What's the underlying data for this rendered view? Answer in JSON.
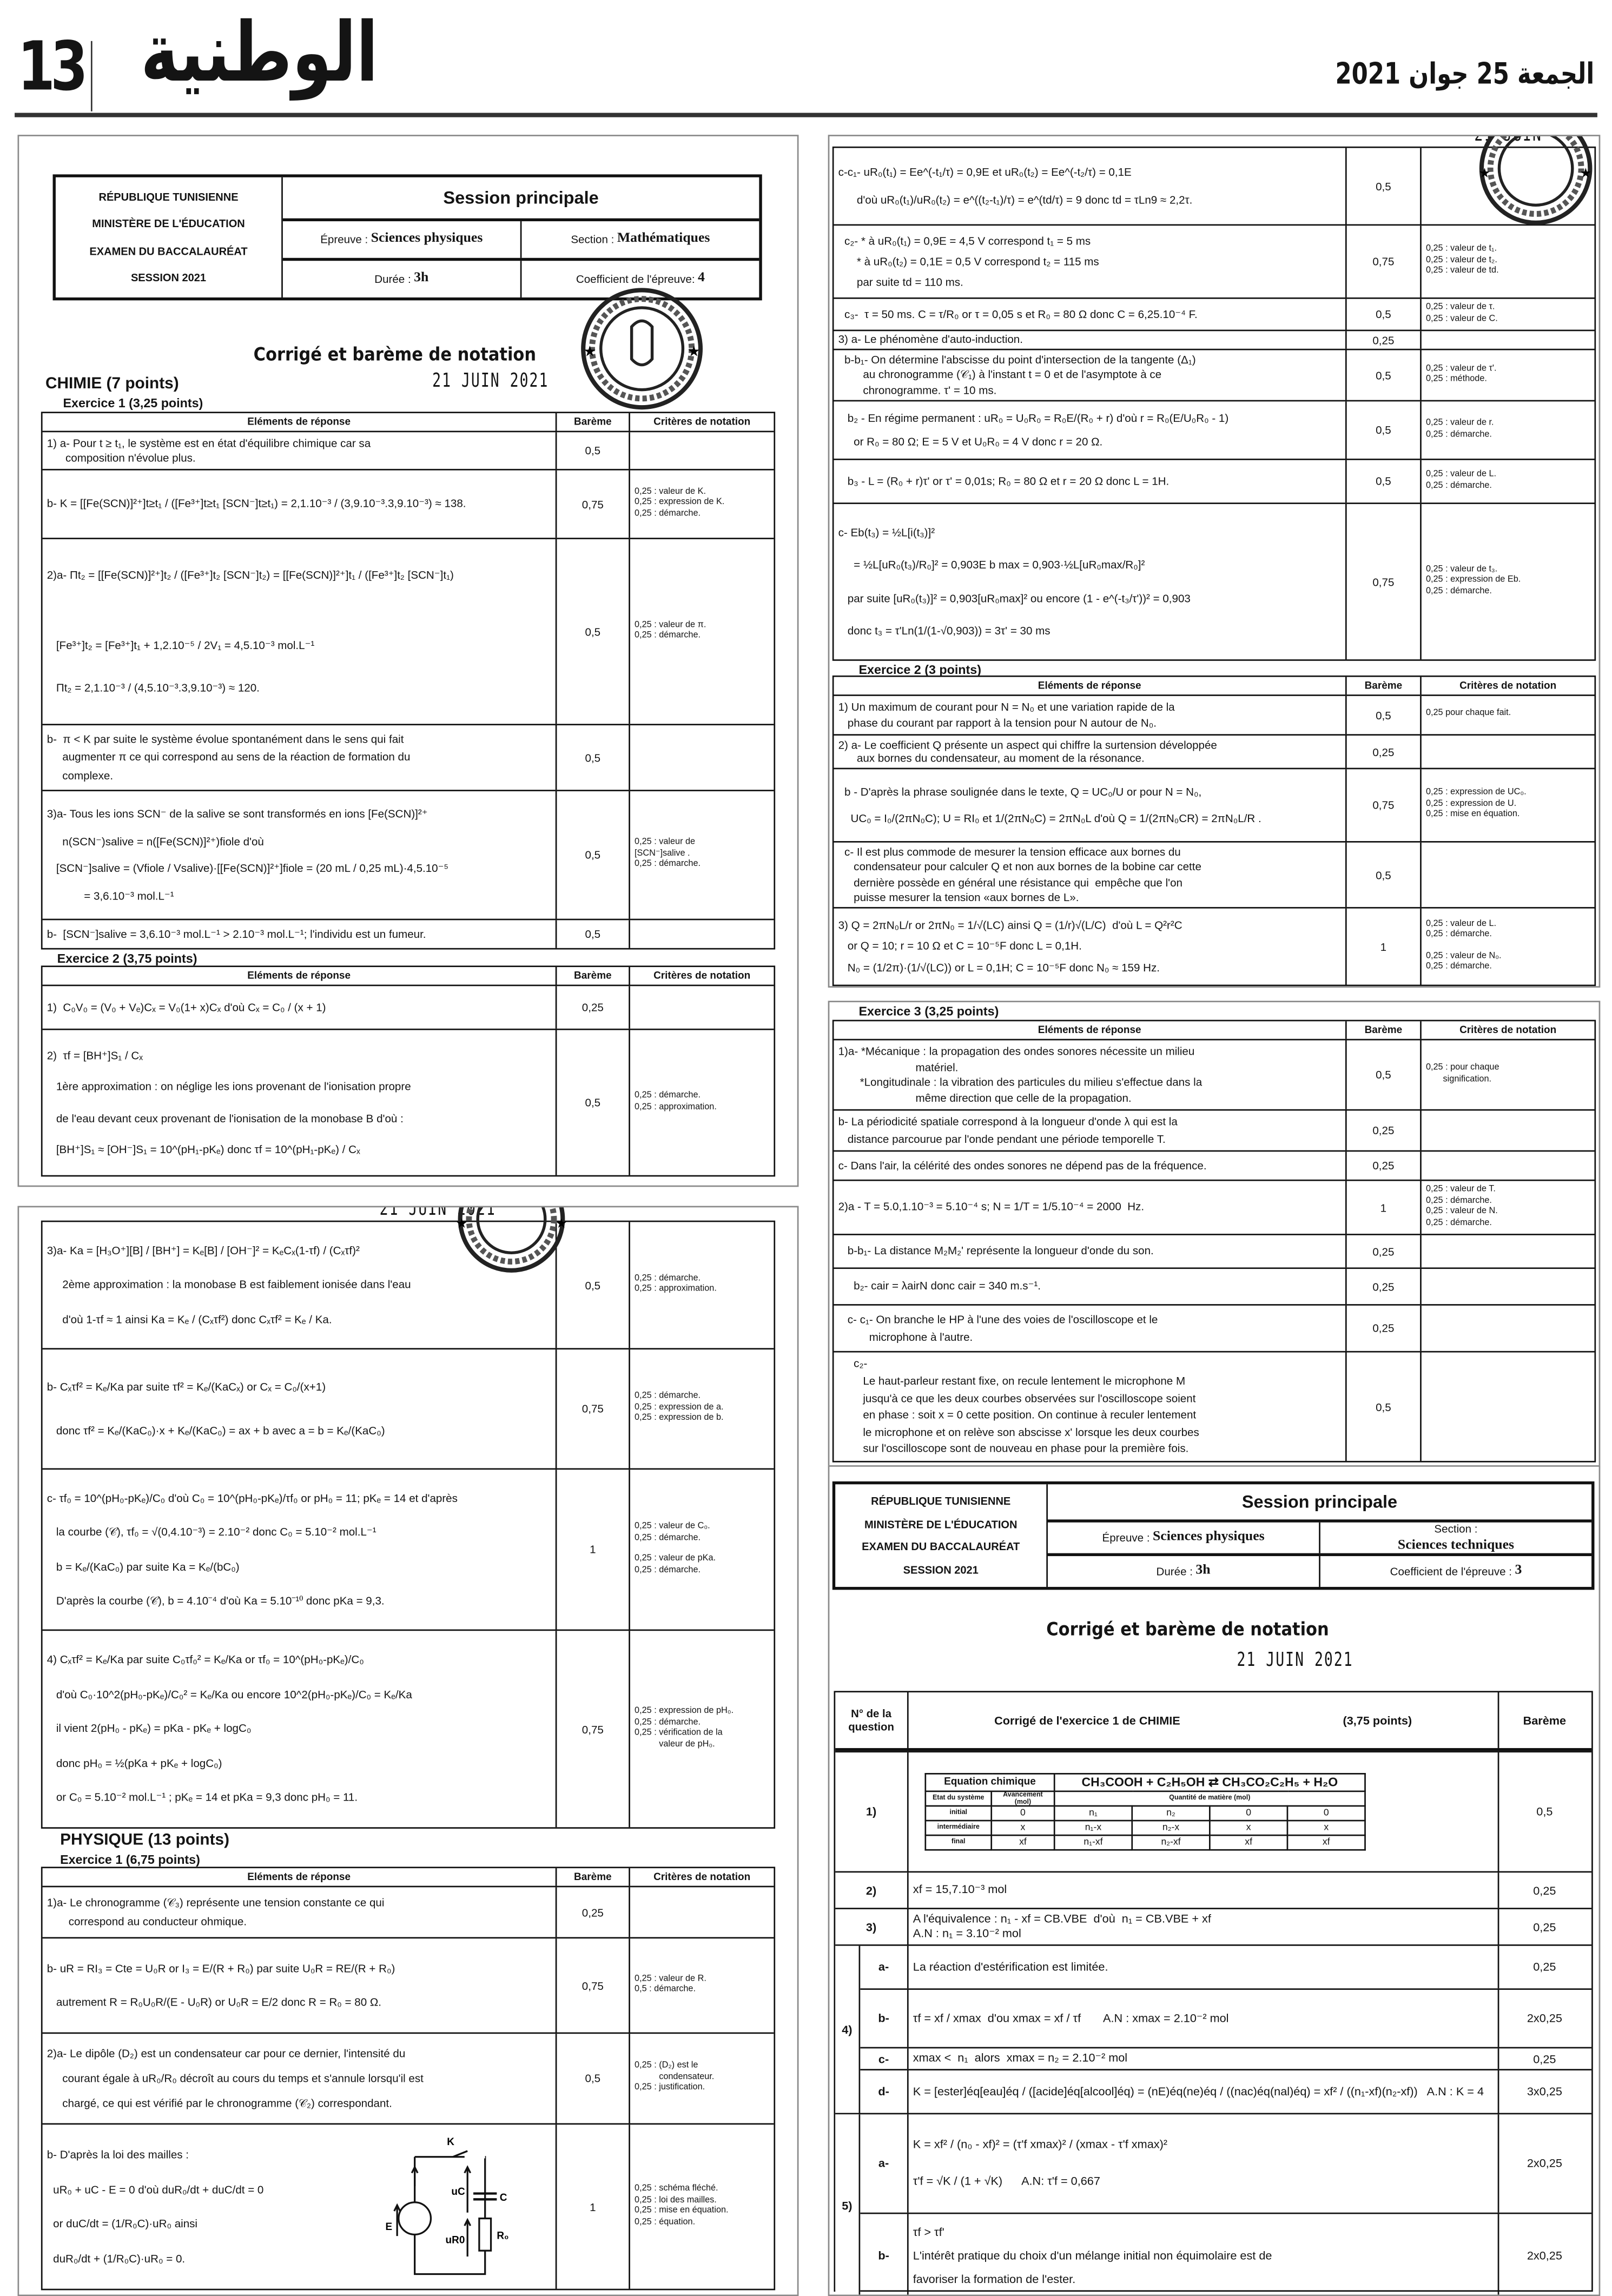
{
  "header": {
    "page_number": "13",
    "logo": "الوطنية",
    "date": "الجمعة 25 جوان 2021"
  },
  "columns": {
    "elements": "Eléments de réponse",
    "bareme": "Barème",
    "criteres": "Critères de notation"
  },
  "stamp_date": "21 JUIN 2021",
  "exam_math": {
    "left": [
      "RÉPUBLIQUE TUNISIENNE",
      "MINISTÈRE DE L'ÉDUCATION",
      "EXAMEN DU BACCALAURÉAT",
      "SESSION 2021"
    ],
    "session": "Session principale",
    "epreuve_label": "Épreuve :",
    "epreuve": "Sciences physiques",
    "section_label": "Section :",
    "section": "Mathématiques",
    "duree_label": "Durée :",
    "duree": "3h",
    "coef_label": "Coefficient de l'épreuve:",
    "coef": "4"
  },
  "math": {
    "title": "Corrigé et barème de notation",
    "chimie": "CHIMIE (7 points)",
    "ex1_label": "Exercice 1 (3,25 points)",
    "ex1": [
      {
        "lines": [
          "1) a- Pour t ≥ t₁, le système est en état d'équilibre chimique car sa",
          "      composition n'évolue plus."
        ],
        "bareme": "0,5",
        "criteres": []
      },
      {
        "lines": [
          "b- K = [[Fe(SCN)]²⁺]t≥t₁ / ([Fe³⁺]t≥t₁ [SCN⁻]t≥t₁) = 2,1.10⁻³ / (3,9.10⁻³.3,9.10⁻³) ≈ 138."
        ],
        "bareme": "0,75",
        "criteres": [
          "0,25 : valeur de K.",
          "0,25 : expression de K.",
          "0,25 : démarche."
        ]
      },
      {
        "lines": [
          "2)a- Πt₂ = [[Fe(SCN)]²⁺]t₂ / ([Fe³⁺]t₂ [SCN⁻]t₂) = [[Fe(SCN)]²⁺]t₁ / ([Fe³⁺]t₂ [SCN⁻]t₁)",
          "",
          "   [Fe³⁺]t₂ = [Fe³⁺]t₁ + 1,2.10⁻⁵ / 2V₁ = 4,5.10⁻³ mol.L⁻¹",
          "   Πt₂ = 2,1.10⁻³ / (4,5.10⁻³.3,9.10⁻³) ≈ 120."
        ],
        "bareme": "0,5",
        "criteres": [
          "0,25 : valeur de π.",
          "0,25 : démarche."
        ]
      },
      {
        "lines": [
          "b-  π < K par suite le système évolue spontanément dans le sens qui fait",
          "     augmenter π ce qui correspond au sens de la réaction de formation du",
          "     complexe."
        ],
        "bareme": "0,5",
        "criteres": []
      },
      {
        "lines": [
          "3)a- Tous les ions SCN⁻ de la salive se sont transformés en ions [Fe(SCN)]²⁺",
          "     n(SCN⁻)salive = n([Fe(SCN)]²⁺)fiole d'où",
          "   [SCN⁻]salive = (Vfiole / Vsalive)·[[Fe(SCN)]²⁺]fiole = (20 mL / 0,25 mL)·4,5.10⁻⁵",
          "            = 3,6.10⁻³ mol.L⁻¹"
        ],
        "bareme": "0,5",
        "criteres": [
          "0,25 : valeur de",
          "[SCN⁻]salive .",
          "0,25 : démarche."
        ]
      },
      {
        "lines": [
          "b-  [SCN⁻]salive = 3,6.10⁻³ mol.L⁻¹ > 2.10⁻³ mol.L⁻¹; l'individu est un fumeur."
        ],
        "bareme": "0,5",
        "criteres": []
      }
    ],
    "ex2_label": "Exercice 2 (3,75 points)",
    "ex2": [
      {
        "lines": [
          "1)  C₀V₀ = (V₀ + Vₑ)Cₓ = V₀(1+ x)Cₓ d'où Cₓ = C₀ / (x + 1)"
        ],
        "bareme": "0,25",
        "criteres": []
      },
      {
        "lines": [
          "2)  τf = [BH⁺]S₁ / Cₓ",
          "   1ère approximation : on néglige les ions provenant de l'ionisation propre",
          "   de l'eau devant ceux provenant de l'ionisation de la monobase B d'où :",
          "   [BH⁺]S₁ ≈ [OH⁻]S₁ = 10^(pH₁-pKₑ) donc τf = 10^(pH₁-pKₑ) / Cₓ"
        ],
        "bareme": "0,5",
        "criteres": [
          "0,25 : démarche.",
          "0,25 : approximation."
        ]
      }
    ],
    "ex2_cont": [
      {
        "lines": [
          "3)a- Ka = [H₃O⁺][B] / [BH⁺] = Kₑ[B] / [OH⁻]² = KₑCₓ(1-τf) / (Cₓτf)²",
          "     2ème approximation : la monobase B est faiblement ionisée dans l'eau",
          "     d'où 1-τf ≈ 1 ainsi Ka = Kₑ / (Cₓτf²) donc Cₓτf² = Kₑ / Ka."
        ],
        "bareme": "0,5",
        "criteres": [
          "0,25 : démarche.",
          "0,25 : approximation."
        ]
      },
      {
        "lines": [
          "b- Cₓτf² = Kₑ/Ka par suite τf² = Kₑ/(KaCₓ) or Cₓ = C₀/(x+1)",
          "   donc τf² = Kₑ/(KaC₀)·x + Kₑ/(KaC₀) = ax + b avec a = b = Kₑ/(KaC₀)"
        ],
        "bareme": "0,75",
        "criteres": [
          "0,25 : démarche.",
          "0,25 : expression de a.",
          "0,25 : expression de b."
        ]
      },
      {
        "lines": [
          "c- τf₀ = 10^(pH₀-pKₑ)/C₀ d'où C₀ = 10^(pH₀-pKₑ)/τf₀ or pH₀ = 11; pKₑ = 14 et d'après",
          "   la courbe (𝒞), τf₀ = √(0,4.10⁻³) = 2.10⁻² donc C₀ = 5.10⁻² mol.L⁻¹",
          "   b = Kₑ/(KaC₀) par suite Ka = Kₑ/(bC₀)",
          "   D'après la courbe (𝒞), b = 4.10⁻⁴ d'où Ka = 5.10⁻¹⁰ donc pKa = 9,3."
        ],
        "bareme": "1",
        "criteres": [
          "0,25 : valeur de C₀.",
          "0,25 : démarche.",
          "",
          "0,25 : valeur de pKa.",
          "0,25 : démarche."
        ]
      },
      {
        "lines": [
          "4) Cₓτf² = Kₑ/Ka par suite C₀τf₀² = Kₑ/Ka or τf₀ = 10^(pH₀-pKₑ)/C₀",
          "   d'où C₀·10^2(pH₀-pKₑ)/C₀² = Kₑ/Ka ou encore 10^2(pH₀-pKₑ)/C₀ = Kₑ/Ka",
          "   il vient 2(pH₀ - pKₑ) = pKa - pKₑ + logC₀",
          "   donc pH₀ = ½(pKa + pKₑ + logC₀)",
          "   or C₀ = 5.10⁻² mol.L⁻¹ ; pKₑ = 14 et pKa = 9,3 donc pH₀ = 11."
        ],
        "bareme": "0,75",
        "criteres": [
          "0,25 : expression de pH₀.",
          "0,25 : démarche.",
          "0,25 : vérification de la",
          "          valeur de pH₀."
        ]
      }
    ],
    "physique": "PHYSIQUE (13 points)",
    "phys_ex1_label": "Exercice 1 (6,75 points)",
    "phys_ex1": [
      {
        "lines": [
          "1)a- Le chronogramme (𝒞₃) représente une tension constante ce qui",
          "       correspond au conducteur ohmique."
        ],
        "bareme": "0,25",
        "criteres": []
      },
      {
        "lines": [
          "b- uR = RI₃ = Cte = U₀R or I₃ = E/(R + R₀) par suite U₀R = RE/(R + R₀)",
          "   autrement R = R₀U₀R/(E - U₀R) or U₀R = E/2 donc R = R₀ = 80 Ω."
        ],
        "bareme": "0,75",
        "criteres": [
          "0,25 : valeur de R.",
          "0,5 : démarche."
        ]
      },
      {
        "lines": [
          "2)a- Le dipôle (D₂) est un condensateur car pour ce dernier, l'intensité du",
          "     courant égale à uR₀/R₀ décroît au cours du temps et s'annule lorsqu'il est",
          "     chargé, ce qui est vérifié par le chronogramme (𝒞₂) correspondant."
        ],
        "bareme": "0,5",
        "criteres": [
          "0,25 : (D₂) est le",
          "          condensateur.",
          "0,25 : justification."
        ]
      },
      {
        "lines": [
          "b- D'après la loi des mailles :",
          "  uR₀ + uC - E = 0 d'où duR₀/dt + duC/dt = 0",
          "  or duC/dt = (1/R₀C)·uR₀ ainsi",
          "  duR₀/dt + (1/R₀C)·uR₀ = 0."
        ],
        "bareme": "1",
        "criteres": [
          "0,25 : schéma fléché.",
          "0,25 : loi des mailles.",
          "0,25 : mise en équation.",
          "0,25 : équation."
        ]
      }
    ],
    "circuit": {
      "switch": "K",
      "generator": "E",
      "uc": "uC",
      "capacitor": "C",
      "ur": "uR0",
      "resistor": "R₀"
    },
    "phys_ex1_cont": [
      {
        "lines": [
          "c-c₁- uR₀(t₁) = Ee^(-t₁/τ) = 0,9E et uR₀(t₂) = Ee^(-t₂/τ) = 0,1E",
          "      d'où uR₀(t₁)/uR₀(t₂) = e^((t₂-t₁)/τ) = e^(td/τ) = 9 donc td = τLn9 ≈ 2,2τ."
        ],
        "bareme": "0,5",
        "criteres": []
      },
      {
        "lines": [
          "  c₂- * à uR₀(t₁) = 0,9E = 4,5 V correspond t₁ = 5 ms",
          "      * à uR₀(t₂) = 0,1E = 0,5 V correspond t₂ = 115 ms",
          "      par suite td = 110 ms."
        ],
        "bareme": "0,75",
        "criteres": [
          "0,25 : valeur de t₁.",
          "0,25 : valeur de t₂.",
          "0,25 : valeur de td."
        ]
      },
      {
        "lines": [
          "  c₃-  τ = 50 ms. C = τ/R₀ or τ = 0,05 s et R₀ = 80 Ω donc C = 6,25.10⁻⁴ F."
        ],
        "bareme": "0,5",
        "criteres": [
          "0,25 : valeur de τ.",
          "0,25 : valeur de C."
        ]
      },
      {
        "lines": [
          "3) a- Le phénomène d'auto-induction."
        ],
        "bareme": "0,25",
        "criteres": []
      },
      {
        "lines": [
          "  b-b₁- On détermine l'abscisse du point d'intersection de la tangente (Δ₁)",
          "        au chronogramme (𝒞₁) à l'instant t = 0 et de l'asymptote à ce",
          "        chronogramme. τ' = 10 ms."
        ],
        "bareme": "0,5",
        "criteres": [
          "0,25 : valeur de τ'.",
          "0,25 : méthode."
        ]
      },
      {
        "lines": [
          "   b₂ - En régime permanent : uR₀ = U₀R₀ = R₀E/(R₀ + r) d'où r = R₀(E/U₀R₀ - 1)",
          "     or R₀ = 80 Ω; E = 5 V et U₀R₀ = 4 V donc r = 20 Ω."
        ],
        "bareme": "0,5",
        "criteres": [
          "0,25 : valeur de r.",
          "0,25 : démarche."
        ]
      },
      {
        "lines": [
          "   b₃ - L = (R₀ + r)τ' or τ' = 0,01s; R₀ = 80 Ω et r = 20 Ω donc L = 1H."
        ],
        "bareme": "0,5",
        "criteres": [
          "0,25 : valeur de L.",
          "0,25 : démarche."
        ]
      },
      {
        "lines": [
          "c- Eb(t₃) = ½L[i(t₃)]²",
          "     = ½L[uR₀(t₃)/R₀]² = 0,903E b max = 0,903·½L[uR₀max/R₀]²",
          "   par suite [uR₀(t₃)]² = 0,903[uR₀max]² ou encore (1 - e^(-t₃/τ'))² = 0,903",
          "   donc t₃ = τ'Ln(1/(1-√0,903)) = 3τ' = 30 ms"
        ],
        "bareme": "0,75",
        "criteres": [
          "0,25 : valeur de t₃.",
          "0,25 : expression de Eb.",
          "0,25 : démarche."
        ]
      }
    ],
    "phys_ex2_label": "Exercice 2 (3 points)",
    "phys_ex2": [
      {
        "lines": [
          "1) Un maximum de courant pour N = N₀ et une variation rapide de la",
          "   phase du courant par rapport à la tension pour N autour de N₀."
        ],
        "bareme": "0,5",
        "criteres": [
          "0,25 pour chaque fait."
        ]
      },
      {
        "lines": [
          "2) a- Le coefficient Q présente un aspect qui chiffre la surtension développée",
          "      aux bornes du condensateur, au moment de la résonance."
        ],
        "bareme": "0,25",
        "criteres": []
      },
      {
        "lines": [
          "  b - D'après la phrase soulignée dans le texte, Q = UC₀/U or pour N = N₀,",
          "    UC₀ = I₀/(2πN₀C); U = RI₀ et 1/(2πN₀C) = 2πN₀L d'où Q = 1/(2πN₀CR) = 2πN₀L/R ."
        ],
        "bareme": "0,75",
        "criteres": [
          "0,25 : expression de UC₀.",
          "0,25 : expression de U.",
          "0,25 : mise en équation."
        ]
      },
      {
        "lines": [
          "  c- Il est plus commode de mesurer la tension efficace aux bornes du",
          "     condensateur pour calculer Q et non aux bornes de la bobine car cette",
          "     dernière possède en général une résistance qui  empêche que l'on",
          "     puisse mesurer la tension «aux bornes de L»."
        ],
        "bareme": "0,5",
        "criteres": []
      },
      {
        "lines": [
          "3) Q = 2πN₀L/r or 2πN₀ = 1/√(LC) ainsi Q = (1/r)√(L/C)  d'où L = Q²r²C",
          "   or Q = 10; r = 10 Ω et C = 10⁻⁵F donc L = 0,1H.",
          "   N₀ = (1/2π)·(1/√(LC)) or L = 0,1H; C = 10⁻⁵F donc N₀ ≈ 159 Hz."
        ],
        "bareme": "1",
        "criteres": [
          "0,25 : valeur de L.",
          "0,25 : démarche.",
          "",
          "0,25 : valeur de N₀.",
          "0,25 : démarche."
        ]
      }
    ],
    "phys_ex3_label": "Exercice 3 (3,25 points)",
    "phys_ex3": [
      {
        "lines": [
          "1)a- *Mécanique : la propagation des ondes sonores nécessite un milieu",
          "                         matériel.",
          "       *Longitudinale : la vibration des particules du milieu s'effectue dans la",
          "                         même direction que celle de la propagation."
        ],
        "bareme": "0,5",
        "criteres": [
          "0,25 : pour chaque",
          "       signification."
        ]
      },
      {
        "lines": [
          "b- La périodicité spatiale correspond à la longueur d'onde λ qui est la",
          "   distance parcourue par l'onde pendant une période temporelle T."
        ],
        "bareme": "0,25",
        "criteres": []
      },
      {
        "lines": [
          "c- Dans l'air, la célérité des ondes sonores ne dépend pas de la fréquence."
        ],
        "bareme": "0,25",
        "criteres": []
      },
      {
        "lines": [
          "2)a - T = 5.0,1.10⁻³ = 5.10⁻⁴ s; N = 1/T = 1/5.10⁻⁴ = 2000  Hz."
        ],
        "bareme": "1",
        "criteres": [
          "0,25 : valeur de T.",
          "0,25 : démarche.",
          "0,25 : valeur de N.",
          "0,25 : démarche."
        ]
      },
      {
        "lines": [
          "   b-b₁- La distance M₂M₂' représente la longueur d'onde du son."
        ],
        "bareme": "0,25",
        "criteres": []
      },
      {
        "lines": [
          "     b₂- cair = λairN donc cair = 340 m.s⁻¹."
        ],
        "bareme": "0,25",
        "criteres": []
      },
      {
        "lines": [
          "   c- c₁- On branche le HP à l'une des voies de l'oscilloscope et le",
          "          microphone à l'autre."
        ],
        "bareme": "0,25",
        "criteres": []
      },
      {
        "lines": [
          "     c₂-",
          "        Le haut-parleur restant fixe, on recule lentement le microphone M",
          "        jusqu'à ce que les deux courbes observées sur l'oscilloscope soient",
          "        en phase : soit x = 0 cette position. On continue à reculer lentement",
          "        le microphone et on relève son abscisse x' lorsque les deux courbes",
          "        sur l'oscilloscope sont de nouveau en phase pour la première fois."
        ],
        "bareme": "0,5",
        "criteres": []
      }
    ]
  },
  "exam_tech": {
    "left": [
      "RÉPUBLIQUE TUNISIENNE",
      "MINISTÈRE DE L'ÉDUCATION",
      "EXAMEN DU BACCALAURÉAT",
      "SESSION 2021"
    ],
    "session": "Session principale",
    "epreuve_label": "Épreuve :",
    "epreuve": "Sciences physiques",
    "section_label": "Section :",
    "section": "Sciences techniques",
    "duree_label": "Durée :",
    "duree": "3h",
    "coef_label": "Coefficient de l'épreuve :",
    "coef": "3"
  },
  "tech": {
    "title": "Corrigé et barème de notation",
    "head": {
      "num": "N° de la question",
      "corrige": "Corrigé de l'exercice 1 de CHIMIE",
      "points": "(3,75 points)",
      "bareme": "Barème"
    },
    "advancement": {
      "equation_label": "Equation chimique",
      "equation": "CH₃COOH + C₂H₅OH ⇄ CH₃CO₂C₂H₅ + H₂O",
      "state_label": "Etat du système",
      "advance_label": "Avancement (mol)",
      "quantity_label": "Quantité de matière (mol)",
      "states": [
        {
          "label": "initial",
          "values": [
            "0",
            "n₁",
            "n₂",
            "0",
            "0"
          ]
        },
        {
          "label": "intermédiaire",
          "values": [
            "x",
            "n₁-x",
            "n₂-x",
            "x",
            "x"
          ]
        },
        {
          "label": "final",
          "values": [
            "xf",
            "n₁-xf",
            "n₂-xf",
            "xf",
            "xf"
          ]
        }
      ]
    },
    "rows": [
      {
        "num": "1)",
        "sub": "",
        "lines": [],
        "bareme": "0,5"
      },
      {
        "num": "2)",
        "sub": "",
        "lines": [
          "xf = 15,7.10⁻³ mol"
        ],
        "bareme": "0,25"
      },
      {
        "num": "3)",
        "sub": "",
        "lines": [
          "A l'équivalence : n₁ - xf = CB.VBE  d'où  n₁ = CB.VBE + xf",
          "A.N : n₁ = 3.10⁻² mol"
        ],
        "bareme": "0,25"
      },
      {
        "num": "4)",
        "sub": "a-",
        "lines": [
          "La réaction d'estérification est limitée."
        ],
        "bareme": "0,25"
      },
      {
        "num": "4)",
        "sub": "b-",
        "lines": [
          "τf = xf / xmax  d'ou xmax = xf / τf       A.N : xmax = 2.10⁻² mol"
        ],
        "bareme": "2x0,25"
      },
      {
        "num": "4)",
        "sub": "c-",
        "lines": [
          "xmax <  n₁  alors  xmax = n₂ = 2.10⁻² mol"
        ],
        "bareme": "0,25"
      },
      {
        "num": "4)",
        "sub": "d-",
        "lines": [
          "K = [ester]éq[eau]éq / ([acide]éq[alcool]éq) = (nE)éq(ne)éq / ((nac)éq(nal)éq) = xf² / ((n₁-xf)(n₂-xf))   A.N : K = 4"
        ],
        "bareme": "3x0,25"
      },
      {
        "num": "5)",
        "sub": "a-",
        "lines": [
          "K = xf² / (n₀ - xf)² = (τ'f xmax)² / (xmax - τ'f xmax)²",
          "τ'f = √K / (1 + √K)      A.N: τ'f = 0,667"
        ],
        "bareme": "2x0,25"
      },
      {
        "num": "5)",
        "sub": "b-",
        "lines": [
          "τf > τf'",
          "L'intérêt pratique du choix d'un mélange initial non équimolaire est de",
          "favoriser la formation de l'ester."
        ],
        "bareme": "2x0,25"
      }
    ]
  }
}
